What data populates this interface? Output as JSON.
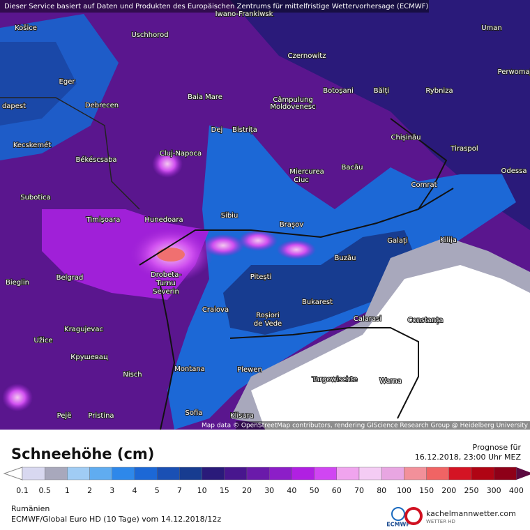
{
  "header": {
    "source_note": "Dieser Service basiert auf Daten und Produkten des Europäischen Zentrums für mittelfristige Wettervorhersage (ECMWF)",
    "attribution": "Map data © OpenStreetMap contributors, rendering GIScience Research Group @ Heidelberg University"
  },
  "cities": [
    "Iwano-Frankiwsk",
    "Košice",
    "Uschhorod",
    "Uman",
    "Eger",
    "Czernowitz",
    "Perwomaj",
    "Baia Mare",
    "Botoșani",
    "Bălți",
    "Rybniza",
    "dapest",
    "Debrecen",
    "Câmpulung",
    "Moldovenesc",
    "Dej",
    "Bistrița",
    "Chișinău",
    "Kecskemét",
    "Cluj-Napoca",
    "Tiraspol",
    "Békéscsaba",
    "Miercurea",
    "Ciuc",
    "Bacău",
    "Odessa",
    "Comrat",
    "Subotica",
    "Sibiu",
    "Timișoara",
    "Hunedoara",
    "Brașov",
    "Galați",
    "Kilija",
    "Drobeta-",
    "Turnu",
    "Severin",
    "Buzău",
    "Bieglin",
    "Belgrad",
    "Pitești",
    "Bukarest",
    "Craiova",
    "Roșiori",
    "de Vede",
    "Calarasi",
    "Constanța",
    "Kragujevac",
    "Užice",
    "Крушевац",
    "Nisch",
    "Montana",
    "Plewen",
    "Targowischte",
    "Warna",
    "Pejë",
    "Pristina",
    "Sofia",
    "Klisura"
  ],
  "legend": {
    "title": "Schneehöhe (cm)",
    "labels": [
      "0.1",
      "0.5",
      "1",
      "2",
      "3",
      "4",
      "5",
      "7",
      "10",
      "15",
      "20",
      "30",
      "40",
      "50",
      "60",
      "70",
      "80",
      "100",
      "150",
      "200",
      "250",
      "300",
      "400"
    ],
    "under_color": "#ffffff",
    "colors": [
      "#d8d8f0",
      "#a8a8bc",
      "#a0ccf4",
      "#60acf0",
      "#2e88ea",
      "#1c68d6",
      "#1a50b4",
      "#173c90",
      "#2a1a7a",
      "#48168e",
      "#6a1aaa",
      "#8c1ec8",
      "#b020e2",
      "#d046f2",
      "#f0a4ee",
      "#f4ccf4",
      "#e8a6e2",
      "#f2909a",
      "#f06464",
      "#d41424",
      "#b00414",
      "#8e0018"
    ],
    "over_color": "#5c0a40"
  },
  "forecast": {
    "label": "Prognose für",
    "time": "16.12.2018, 23:00 Uhr MEZ"
  },
  "footer": {
    "region": "Rumänien",
    "model": "ECMWF/Global Euro HD (10 Tage) vom 14.12.2018/12z",
    "ecmwf": "ECMWF",
    "site": "kachelmannwetter.com",
    "site_sub": "WETTER HD"
  }
}
